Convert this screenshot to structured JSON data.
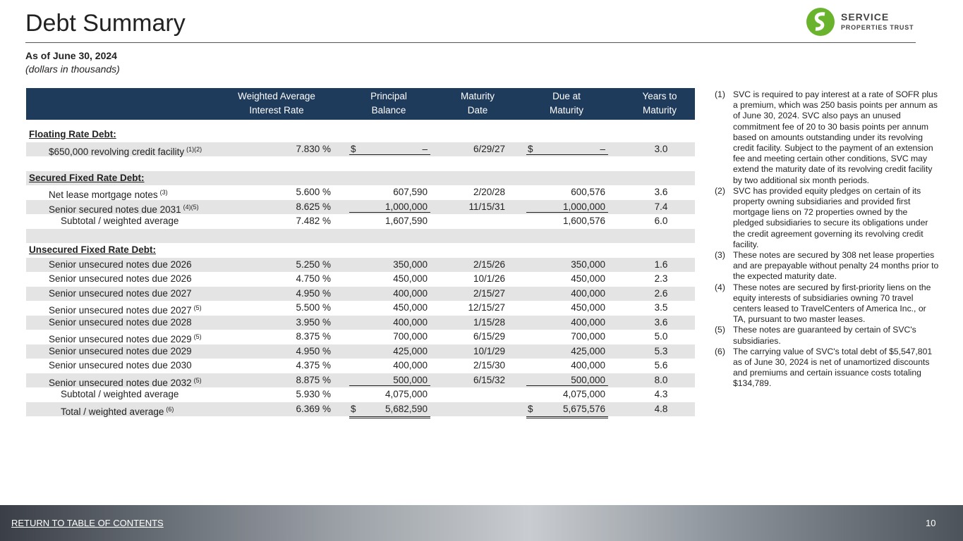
{
  "header": {
    "title": "Debt Summary",
    "subtitle": "As of June 30, 2024",
    "note": "(dollars in thousands)",
    "logo": {
      "line1": "SERVICE",
      "line2": "PROPERTIES TRUST"
    }
  },
  "table": {
    "columns": [
      [
        "Weighted Average",
        "Interest Rate"
      ],
      [
        "Principal",
        "Balance"
      ],
      [
        "Maturity",
        "Date"
      ],
      [
        "Due at",
        "Maturity"
      ],
      [
        "Years to",
        "Maturity"
      ]
    ],
    "sections": [
      {
        "title": "Floating Rate Debt:",
        "rows": [
          {
            "label": "$650,000 revolving credit facility",
            "note": "(1)(2)",
            "rate": "7.830 %",
            "cur1": "$",
            "principal": "–",
            "date": "6/29/27",
            "cur2": "$",
            "due": "–",
            "years": "3.0",
            "rule": "single"
          }
        ]
      },
      {
        "title": "Secured Fixed Rate Debt:",
        "rows": [
          {
            "label": "Net lease mortgage notes",
            "note": "(3)",
            "rate": "5.600 %",
            "principal": "607,590",
            "date": "2/20/28",
            "due": "600,576",
            "years": "3.6"
          },
          {
            "label": "Senior secured notes due 2031",
            "note": "(4)(5)",
            "rate": "8.625 %",
            "principal": "1,000,000",
            "date": "11/15/31",
            "due": "1,000,000",
            "years": "7.4",
            "rule": "single"
          },
          {
            "label": "Subtotal / weighted average",
            "kind": "subtotal",
            "rate": "7.482 %",
            "principal": "1,607,590",
            "due": "1,600,576",
            "years": "6.0"
          }
        ]
      },
      {
        "title": "Unsecured Fixed Rate Debt:",
        "rows": [
          {
            "label": "Senior unsecured notes due 2026",
            "rate": "5.250 %",
            "principal": "350,000",
            "date": "2/15/26",
            "due": "350,000",
            "years": "1.6"
          },
          {
            "label": "Senior unsecured notes due 2026",
            "rate": "4.750 %",
            "principal": "450,000",
            "date": "10/1/26",
            "due": "450,000",
            "years": "2.3"
          },
          {
            "label": "Senior unsecured notes due 2027",
            "rate": "4.950 %",
            "principal": "400,000",
            "date": "2/15/27",
            "due": "400,000",
            "years": "2.6"
          },
          {
            "label": "Senior unsecured notes due 2027",
            "note": "(5)",
            "rate": "5.500 %",
            "principal": "450,000",
            "date": "12/15/27",
            "due": "450,000",
            "years": "3.5"
          },
          {
            "label": "Senior unsecured notes due 2028",
            "rate": "3.950 %",
            "principal": "400,000",
            "date": "1/15/28",
            "due": "400,000",
            "years": "3.6"
          },
          {
            "label": "Senior unsecured notes due 2029",
            "note": "(5)",
            "rate": "8.375 %",
            "principal": "700,000",
            "date": "6/15/29",
            "due": "700,000",
            "years": "5.0"
          },
          {
            "label": "Senior unsecured notes due 2029",
            "rate": "4.950 %",
            "principal": "425,000",
            "date": "10/1/29",
            "due": "425,000",
            "years": "5.3"
          },
          {
            "label": "Senior unsecured notes due 2030",
            "rate": "4.375 %",
            "principal": "400,000",
            "date": "2/15/30",
            "due": "400,000",
            "years": "5.6"
          },
          {
            "label": "Senior unsecured notes due 2032",
            "note": "(5)",
            "rate": "8.875 %",
            "principal": "500,000",
            "date": "6/15/32",
            "due": "500,000",
            "years": "8.0",
            "rule": "single"
          },
          {
            "label": "Subtotal / weighted average",
            "kind": "subtotal",
            "rate": "5.930 %",
            "principal": "4,075,000",
            "due": "4,075,000",
            "years": "4.3"
          },
          {
            "label": "Total / weighted average",
            "kind": "subtotal",
            "note": "(6)",
            "rate": "6.369 %",
            "cur1": "$",
            "principal": "5,682,590",
            "cur2": "$",
            "due": "5,675,576",
            "years": "4.8",
            "rule": "double"
          }
        ]
      }
    ]
  },
  "footnotes": [
    {
      "num": "(1)",
      "text": "SVC is required to pay interest at a rate of SOFR plus a premium, which was 250 basis points per annum as of June 30, 2024. SVC also pays an unused commitment fee of 20 to 30 basis points per annum based on amounts outstanding under its revolving credit facility. Subject to the payment of an extension fee and meeting certain other conditions, SVC may extend the maturity date of its revolving credit facility by two additional six month periods."
    },
    {
      "num": "(2)",
      "text": "SVC has provided equity pledges on certain of its property owning subsidiaries and provided first mortgage liens on 72 properties owned by the pledged subsidiaries to secure its obligations under the credit agreement governing its revolving credit facility."
    },
    {
      "num": "(3)",
      "text": "These notes are secured by 308 net lease properties and are prepayable without penalty 24 months prior to the expected maturity date."
    },
    {
      "num": "(4)",
      "text": "These notes are secured by first-priority liens on the equity interests of subsidiaries owning 70 travel centers leased to TravelCenters of America Inc., or TA, pursuant to two master leases."
    },
    {
      "num": "(5)",
      "text": "These notes are guaranteed by certain of SVC's subsidiaries."
    },
    {
      "num": "(6)",
      "text": "The carrying value of SVC's total debt of $5,547,801 as of June 30, 2024 is net of unamortized discounts and premiums and certain issuance costs totaling $134,789."
    }
  ],
  "footer": {
    "link": "RETURN TO TABLE OF CONTENTS",
    "page": "10"
  }
}
